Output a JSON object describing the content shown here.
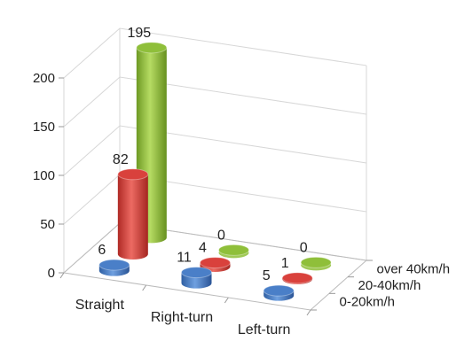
{
  "chart_data": {
    "type": "bar",
    "style": "3d-cylinder",
    "categories": [
      "Straight",
      "Right-turn",
      "Left-turn"
    ],
    "series": [
      {
        "name": "0-20km/h",
        "values": [
          6,
          11,
          5
        ],
        "color": "#4a7fc8"
      },
      {
        "name": "20-40km/h",
        "values": [
          82,
          4,
          1
        ],
        "color": "#d9413c"
      },
      {
        "name": "over 40km/h",
        "values": [
          195,
          0,
          0
        ],
        "color": "#8fbf3a"
      }
    ],
    "yticks": [
      0,
      50,
      100,
      150,
      200
    ],
    "ylim": [
      0,
      200
    ],
    "grid": true,
    "legend": "series labels on depth axis"
  }
}
